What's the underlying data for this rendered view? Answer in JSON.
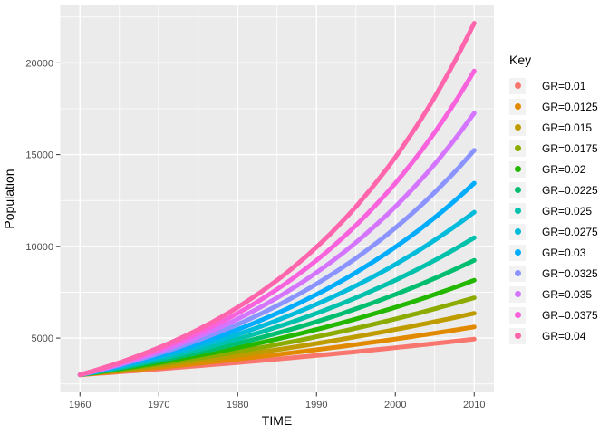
{
  "figure": {
    "background": "#FFFFFF",
    "panel_background": "#EBEBEB",
    "grid_color": "#FFFFFF",
    "tick_mark_color": "#333333",
    "tick_label_color": "#4D4D4D",
    "axis_title_color": "#000000",
    "legend_key_background": "#F2F2F2"
  },
  "chart_data": {
    "type": "line",
    "title": "",
    "xlabel": "TIME",
    "ylabel": "Population",
    "legend_title": "Key",
    "legend_position": "right",
    "grid": true,
    "xlim": [
      1957.5,
      2012.5
    ],
    "ylim": [
      2040,
      23130
    ],
    "x_ticks": [
      1960,
      1970,
      1980,
      1990,
      2000,
      2010
    ],
    "x_minor_ticks": [
      1965,
      1975,
      1985,
      1995,
      2005
    ],
    "y_ticks": [
      5000,
      10000,
      15000,
      20000
    ],
    "y_minor_ticks": [
      2500,
      7500,
      12500,
      17500,
      22500
    ],
    "x_samples": [
      1960,
      1970,
      1980,
      1990,
      2000,
      2010
    ],
    "initial_population": 3000,
    "series": [
      {
        "name": "GR=0.01",
        "growth_rate": 0.01,
        "color": "#F8766D",
        "values": [
          3000,
          3316,
          3664,
          4050,
          4476,
          4946
        ]
      },
      {
        "name": "GR=0.0125",
        "growth_rate": 0.0125,
        "color": "#E18A00",
        "values": [
          3000,
          3399,
          3852,
          4365,
          4946,
          5605
        ]
      },
      {
        "name": "GR=0.015",
        "growth_rate": 0.015,
        "color": "#BE9C00",
        "values": [
          3000,
          3485,
          4050,
          4705,
          5466,
          6351
        ]
      },
      {
        "name": "GR=0.0175",
        "growth_rate": 0.0175,
        "color": "#8CAB00",
        "values": [
          3000,
          3574,
          4257,
          5071,
          6041,
          7197
        ]
      },
      {
        "name": "GR=0.02",
        "growth_rate": 0.02,
        "color": "#24B700",
        "values": [
          3000,
          3664,
          4476,
          5466,
          6677,
          8155
        ]
      },
      {
        "name": "GR=0.0225",
        "growth_rate": 0.0225,
        "color": "#00BE70",
        "values": [
          3000,
          3757,
          4705,
          5892,
          7379,
          9241
        ]
      },
      {
        "name": "GR=0.025",
        "growth_rate": 0.025,
        "color": "#00C1AB",
        "values": [
          3000,
          3852,
          4946,
          6351,
          8155,
          10471
        ]
      },
      {
        "name": "GR=0.0275",
        "growth_rate": 0.0275,
        "color": "#00BBDA",
        "values": [
          3000,
          3950,
          5200,
          6846,
          9013,
          11865
        ]
      },
      {
        "name": "GR=0.03",
        "growth_rate": 0.03,
        "color": "#00ACFC",
        "values": [
          3000,
          4050,
          5466,
          7379,
          9960,
          13445
        ]
      },
      {
        "name": "GR=0.0325",
        "growth_rate": 0.0325,
        "color": "#8B93FF",
        "values": [
          3000,
          4152,
          5747,
          7954,
          11008,
          15235
        ]
      },
      {
        "name": "GR=0.035",
        "growth_rate": 0.035,
        "color": "#D575FE",
        "values": [
          3000,
          4257,
          6041,
          8573,
          12166,
          17264
        ]
      },
      {
        "name": "GR=0.0375",
        "growth_rate": 0.0375,
        "color": "#F962DD",
        "values": [
          3000,
          4365,
          6351,
          9241,
          13445,
          19564
        ]
      },
      {
        "name": "GR=0.04",
        "growth_rate": 0.04,
        "color": "#FF65AC",
        "values": [
          3000,
          4476,
          6677,
          9960,
          14859,
          22167
        ]
      }
    ]
  }
}
